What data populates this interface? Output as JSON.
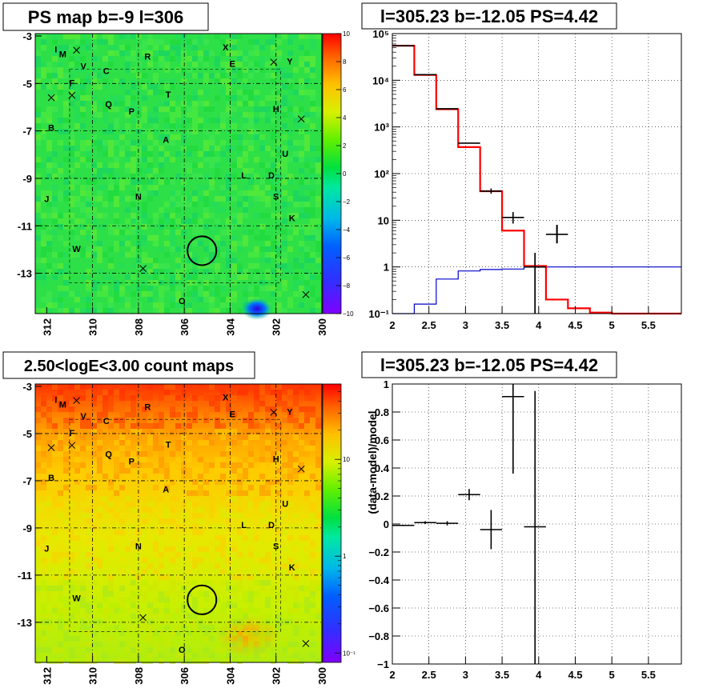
{
  "panels": {
    "ps_map": {
      "title": "PS map b=-9 l=306",
      "x_ticks": [
        "312",
        "310",
        "308",
        "306",
        "304",
        "302",
        "300"
      ],
      "y_ticks": [
        "-3",
        "-5",
        "-7",
        "-9",
        "-11",
        "-13"
      ],
      "colorbar_ticks": [
        "10",
        "8",
        "6",
        "4",
        "2",
        "0",
        "−2",
        "−4",
        "−6",
        "−8",
        "−10"
      ],
      "colorbar_tick_values": [
        10,
        8,
        6,
        4,
        2,
        0,
        -2,
        -4,
        -6,
        -8,
        -10
      ],
      "colorbar_range": [
        -10,
        10
      ]
    },
    "count_map": {
      "title": "2.50<logE<3.00 count maps",
      "x_ticks": [
        "312",
        "310",
        "308",
        "306",
        "304",
        "302",
        "300"
      ],
      "y_ticks": [
        "-3",
        "-5",
        "-7",
        "-9",
        "-11",
        "-13"
      ],
      "colorbar_ticks": [
        "10",
        "1",
        "10⁻¹"
      ]
    },
    "spectrum": {
      "title": "l=305.23 b=-12.05 PS=4.42",
      "x_ticks": [
        "2",
        "2.5",
        "3",
        "3.5",
        "4",
        "4.5",
        "5",
        "5.5"
      ],
      "y_ticks": [
        "10⁻¹",
        "1",
        "10",
        "10²",
        "10³",
        "10⁴",
        "10⁵"
      ]
    },
    "residual": {
      "title": "l=305.23 b=-12.05 PS=4.42",
      "ylabel": "(data-model)/model",
      "x_ticks": [
        "2",
        "2.5",
        "3",
        "3.5",
        "4",
        "4.5",
        "5",
        "5.5"
      ],
      "y_ticks": [
        "1",
        "0.8",
        "0.6",
        "0.4",
        "0.2",
        "0",
        "−0.2",
        "−0.4",
        "−0.6",
        "−0.8",
        "−1"
      ]
    }
  },
  "sources": [
    {
      "label": "I",
      "l": 311.6,
      "b": -3.7
    },
    {
      "label": "M",
      "l": 311.3,
      "b": -3.9
    },
    {
      "label": "X",
      "l": 304.2,
      "b": -3.6
    },
    {
      "label": "R",
      "l": 307.6,
      "b": -4.0
    },
    {
      "label": "E",
      "l": 303.9,
      "b": -4.3
    },
    {
      "label": "Y",
      "l": 301.4,
      "b": -4.2
    },
    {
      "label": "V",
      "l": 310.4,
      "b": -4.4
    },
    {
      "label": "C",
      "l": 309.4,
      "b": -4.6
    },
    {
      "label": "F",
      "l": 310.9,
      "b": -5.1
    },
    {
      "label": "T",
      "l": 306.7,
      "b": -5.6
    },
    {
      "label": "Q",
      "l": 309.3,
      "b": -6.0
    },
    {
      "label": "P",
      "l": 308.3,
      "b": -6.3
    },
    {
      "label": "H",
      "l": 302.0,
      "b": -6.2
    },
    {
      "label": "B",
      "l": 311.8,
      "b": -7.0
    },
    {
      "label": "A",
      "l": 306.8,
      "b": -7.5
    },
    {
      "label": "U",
      "l": 301.6,
      "b": -8.1
    },
    {
      "label": "L",
      "l": 303.4,
      "b": -9.0
    },
    {
      "label": "D",
      "l": 302.2,
      "b": -9.0
    },
    {
      "label": "N",
      "l": 308.0,
      "b": -9.9
    },
    {
      "label": "S",
      "l": 302.0,
      "b": -9.9
    },
    {
      "label": "J",
      "l": 312.0,
      "b": -10.0
    },
    {
      "label": "K",
      "l": 301.3,
      "b": -10.8
    },
    {
      "label": "W",
      "l": 310.7,
      "b": -12.1
    },
    {
      "label": "O",
      "l": 306.1,
      "b": -14.3
    }
  ],
  "crosses": [
    {
      "l": 310.7,
      "b": -3.6
    },
    {
      "l": 302.1,
      "b": -4.1
    },
    {
      "l": 311.8,
      "b": -5.6
    },
    {
      "l": 310.9,
      "b": -5.5
    },
    {
      "l": 300.9,
      "b": -6.5
    },
    {
      "l": 307.8,
      "b": -12.8
    },
    {
      "l": 300.7,
      "b": -13.9
    }
  ],
  "circle": {
    "l": 305.23,
    "b": -12.05,
    "radius_deg": 0.45
  },
  "chart_data": [
    {
      "type": "heatmap",
      "name": "ps_map",
      "title": "PS map b=-9 l=306",
      "x_range": [
        312.5,
        300
      ],
      "y_range": [
        -2.9,
        -14.7
      ],
      "z_range": [
        -10,
        10
      ],
      "background_value": 0.5,
      "features": [
        {
          "l": 302.7,
          "b": -14.6,
          "value": -9
        },
        {
          "l": 305.2,
          "b": -12.0,
          "value": 3
        }
      ]
    },
    {
      "type": "heatmap",
      "name": "count_map",
      "title": "2.50<logE<3.00 count maps",
      "x_range": [
        312.5,
        300
      ],
      "y_range": [
        -2.9,
        -14.7
      ],
      "z_log": true,
      "z_range": [
        0.08,
        60
      ],
      "top_value": 25,
      "bottom_value": 1.5
    },
    {
      "type": "line",
      "name": "spectrum",
      "title": "l=305.23 b=-12.05 PS=4.42",
      "log_y": true,
      "xlim": [
        2,
        5.95
      ],
      "ylim": [
        0.1,
        100000
      ],
      "grid": true,
      "model_total": {
        "edges": [
          2,
          2.3,
          2.6,
          2.9,
          3.2,
          3.5,
          3.8,
          4.1,
          4.4,
          4.7,
          5.0,
          5.95
        ],
        "values": [
          55000,
          13000,
          2400,
          370,
          42,
          6,
          1.05,
          0.2,
          0.13,
          0.105,
          0.1
        ]
      },
      "model_source": {
        "edges": [
          2,
          2.3,
          2.6,
          2.9,
          3.2,
          3.5,
          3.8,
          4.1,
          4.4,
          4.7,
          5.0,
          5.95
        ],
        "values": [
          0.1,
          0.16,
          0.55,
          0.82,
          0.88,
          0.9,
          1.0,
          1.0,
          1.0,
          1.0,
          1.0
        ]
      },
      "data_points": [
        {
          "x": 2.15,
          "xerr": 0.15,
          "y": 55000,
          "ylo": 55000,
          "yhi": 55000
        },
        {
          "x": 2.45,
          "xerr": 0.15,
          "y": 13200,
          "ylo": 13200,
          "yhi": 13200
        },
        {
          "x": 2.75,
          "xerr": 0.15,
          "y": 2450,
          "ylo": 2400,
          "yhi": 2500
        },
        {
          "x": 3.05,
          "xerr": 0.15,
          "y": 450,
          "ylo": 440,
          "yhi": 460
        },
        {
          "x": 3.35,
          "xerr": 0.15,
          "y": 42,
          "ylo": 37,
          "yhi": 48
        },
        {
          "x": 3.65,
          "xerr": 0.15,
          "y": 11.5,
          "ylo": 8.5,
          "yhi": 15
        },
        {
          "x": 3.95,
          "xerr": 0.15,
          "y": 1.0,
          "ylo": 0.1,
          "yhi": 2.0
        },
        {
          "x": 4.25,
          "xerr": 0.15,
          "y": 5,
          "ylo": 3.3,
          "yhi": 7.5
        }
      ]
    },
    {
      "type": "scatter",
      "name": "residual",
      "title": "l=305.23 b=-12.05 PS=4.42",
      "ylabel": "(data-model)/model",
      "xlim": [
        2,
        5.95
      ],
      "ylim": [
        -1,
        1
      ],
      "grid": true,
      "points": [
        {
          "x": 2.15,
          "xerr": 0.15,
          "y": -0.01,
          "ylo": -0.015,
          "yhi": -0.005
        },
        {
          "x": 2.45,
          "xerr": 0.15,
          "y": 0.01,
          "ylo": 0.0,
          "yhi": 0.02
        },
        {
          "x": 2.75,
          "xerr": 0.15,
          "y": 0.005,
          "ylo": -0.01,
          "yhi": 0.02
        },
        {
          "x": 3.05,
          "xerr": 0.15,
          "y": 0.21,
          "ylo": 0.17,
          "yhi": 0.25
        },
        {
          "x": 3.35,
          "xerr": 0.15,
          "y": -0.04,
          "ylo": -0.18,
          "yhi": 0.1
        },
        {
          "x": 3.65,
          "xerr": 0.15,
          "y": 0.91,
          "ylo": 0.36,
          "yhi": 1.0
        },
        {
          "x": 3.95,
          "xerr": 0.15,
          "y": -0.02,
          "ylo": -1.0,
          "yhi": 0.95
        }
      ]
    }
  ]
}
